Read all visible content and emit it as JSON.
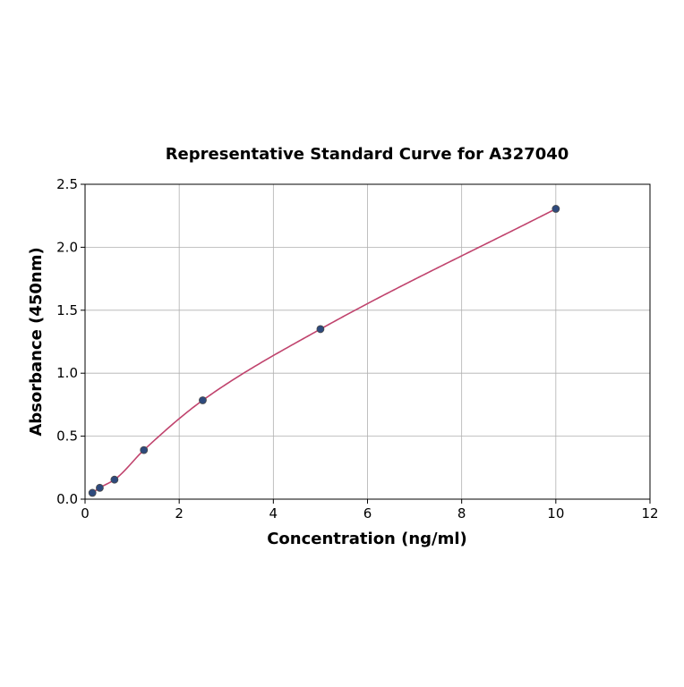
{
  "chart_data": {
    "type": "scatter",
    "title": "Representative Standard Curve for A327040",
    "xlabel": "Concentration (ng/ml)",
    "ylabel": "Absorbance (450nm)",
    "xlim": [
      0,
      12
    ],
    "ylim": [
      0,
      2.5
    ],
    "xticks": [
      0,
      2,
      4,
      6,
      8,
      10,
      12
    ],
    "xtick_labels": [
      "0",
      "2",
      "4",
      "6",
      "8",
      "10",
      "12"
    ],
    "yticks": [
      0,
      0.5,
      1.0,
      1.5,
      2.0,
      2.5
    ],
    "ytick_labels": [
      "0.0",
      "0.5",
      "1.0",
      "1.5",
      "2.0",
      "2.5"
    ],
    "grid": true,
    "series": [
      {
        "points": [
          {
            "x": 0.156,
            "y": 0.05
          },
          {
            "x": 0.3125,
            "y": 0.09
          },
          {
            "x": 0.625,
            "y": 0.155
          },
          {
            "x": 1.25,
            "y": 0.39
          },
          {
            "x": 2.5,
            "y": 0.785
          },
          {
            "x": 5.0,
            "y": 1.35
          },
          {
            "x": 10.0,
            "y": 2.305
          }
        ],
        "marker_color": "#2e4a7d",
        "marker_edge_color": "#4a4a4a"
      }
    ],
    "fit_curve": {
      "color": "#c0436d",
      "x_range": [
        0.156,
        10.0
      ]
    }
  }
}
